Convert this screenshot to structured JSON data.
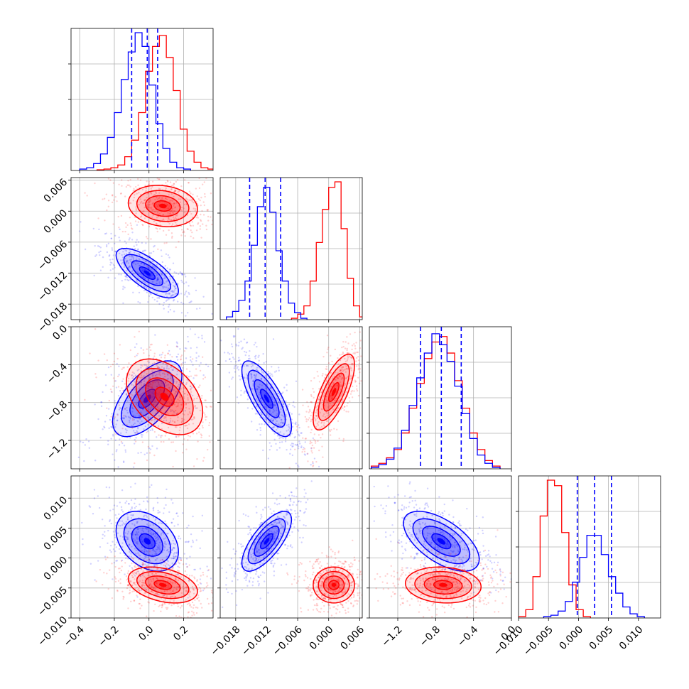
{
  "colors": {
    "series_a": "#ff0000",
    "series_b": "#0000ff",
    "grid": "#b0b0b0"
  },
  "chart_data": {
    "type": "corner",
    "grid": true,
    "series": [
      {
        "name": "",
        "color": "#ff0000",
        "params": {
          "p0": 0.07,
          "p1": 0.001,
          "p2": -0.72,
          "p3": -0.0045
        }
      },
      {
        "name": "",
        "color": "#0000ff",
        "params": {
          "p0": -0.01,
          "p1": -0.012,
          "p2": -0.74,
          "p3": 0.0028
        }
      }
    ],
    "quantiles_blue": {
      "p0": [
        -0.1,
        -0.01,
        0.05
      ],
      "p1": [
        -0.0153,
        -0.0123,
        -0.0093
      ],
      "p2": [
        -0.96,
        -0.74,
        -0.53
      ],
      "p3": [
        -0.0002,
        0.0027,
        0.0055
      ]
    },
    "axes": {
      "p0": {
        "range": [
          -0.45,
          0.37
        ],
        "ticks": [
          -0.4,
          -0.2,
          0.0,
          0.2
        ],
        "tick_labels": [
          "−0.4",
          "−0.2",
          "0.0",
          "0.2"
        ]
      },
      "p1": {
        "range": [
          -0.021,
          0.0065
        ],
        "ticks": [
          -0.018,
          -0.012,
          -0.006,
          0.0,
          0.006
        ],
        "tick_labels": [
          "−0.018",
          "−0.012",
          "−0.006",
          "0.000",
          "0.006"
        ]
      },
      "p2": {
        "range": [
          -1.5,
          0.0
        ],
        "ticks": [
          -1.2,
          -0.8,
          -0.4,
          0.0
        ],
        "tick_labels": [
          "−1.2",
          "−0.8",
          "−0.4",
          "0.0"
        ]
      },
      "p3": {
        "range": [
          -0.01,
          0.0137
        ],
        "ticks": [
          -0.01,
          -0.005,
          0.0,
          0.005,
          0.01
        ],
        "tick_labels": [
          "−0.010",
          "−0.005",
          "0.000",
          "0.005",
          "0.010"
        ]
      }
    },
    "histograms": {
      "p0": {
        "red": [
          [
            -0.28,
            0.005
          ],
          [
            -0.24,
            0.01
          ],
          [
            -0.2,
            0.02
          ],
          [
            -0.16,
            0.04
          ],
          [
            -0.12,
            0.1
          ],
          [
            -0.08,
            0.22
          ],
          [
            -0.04,
            0.42
          ],
          [
            0.0,
            0.72
          ],
          [
            0.04,
            0.9
          ],
          [
            0.08,
            0.98
          ],
          [
            0.12,
            0.82
          ],
          [
            0.16,
            0.58
          ],
          [
            0.2,
            0.3
          ],
          [
            0.24,
            0.14
          ],
          [
            0.28,
            0.06
          ],
          [
            0.32,
            0.02
          ],
          [
            0.36,
            0.01
          ]
        ],
        "blue": [
          [
            -0.38,
            0.01
          ],
          [
            -0.34,
            0.02
          ],
          [
            -0.3,
            0.05
          ],
          [
            -0.26,
            0.12
          ],
          [
            -0.22,
            0.24
          ],
          [
            -0.18,
            0.42
          ],
          [
            -0.14,
            0.66
          ],
          [
            -0.1,
            0.86
          ],
          [
            -0.06,
            1.0
          ],
          [
            -0.02,
            0.9
          ],
          [
            0.02,
            0.62
          ],
          [
            0.06,
            0.34
          ],
          [
            0.1,
            0.16
          ],
          [
            0.14,
            0.06
          ],
          [
            0.18,
            0.02
          ],
          [
            0.22,
            0.01
          ]
        ]
      },
      "p1": {
        "red": [
          [
            -0.0066,
            0.01
          ],
          [
            -0.0054,
            0.04
          ],
          [
            -0.0042,
            0.1
          ],
          [
            -0.003,
            0.28
          ],
          [
            -0.0018,
            0.56
          ],
          [
            -0.0006,
            0.8
          ],
          [
            0.0006,
            0.96
          ],
          [
            0.0018,
            1.0
          ],
          [
            0.003,
            0.66
          ],
          [
            0.0042,
            0.3
          ],
          [
            0.0054,
            0.1
          ],
          [
            0.0066,
            0.02
          ]
        ],
        "blue": [
          [
            -0.0192,
            0.02
          ],
          [
            -0.018,
            0.06
          ],
          [
            -0.0168,
            0.14
          ],
          [
            -0.0156,
            0.28
          ],
          [
            -0.0144,
            0.54
          ],
          [
            -0.0132,
            0.82
          ],
          [
            -0.012,
            0.96
          ],
          [
            -0.0108,
            0.78
          ],
          [
            -0.0096,
            0.5
          ],
          [
            -0.0084,
            0.28
          ],
          [
            -0.0072,
            0.12
          ],
          [
            -0.006,
            0.05
          ],
          [
            -0.0048,
            0.01
          ]
        ]
      },
      "p2": {
        "red": [
          [
            -1.44,
            0.02
          ],
          [
            -1.36,
            0.04
          ],
          [
            -1.28,
            0.08
          ],
          [
            -1.2,
            0.14
          ],
          [
            -1.12,
            0.26
          ],
          [
            -1.04,
            0.44
          ],
          [
            -0.96,
            0.62
          ],
          [
            -0.88,
            0.8
          ],
          [
            -0.8,
            0.92
          ],
          [
            -0.72,
            0.96
          ],
          [
            -0.64,
            0.84
          ],
          [
            -0.56,
            0.64
          ],
          [
            -0.48,
            0.44
          ],
          [
            -0.4,
            0.26
          ],
          [
            -0.32,
            0.14
          ],
          [
            -0.24,
            0.06
          ],
          [
            -0.16,
            0.02
          ]
        ],
        "blue": [
          [
            -1.44,
            0.01
          ],
          [
            -1.36,
            0.03
          ],
          [
            -1.28,
            0.07
          ],
          [
            -1.2,
            0.15
          ],
          [
            -1.12,
            0.28
          ],
          [
            -1.04,
            0.46
          ],
          [
            -0.96,
            0.66
          ],
          [
            -0.88,
            0.84
          ],
          [
            -0.8,
            0.98
          ],
          [
            -0.72,
            0.9
          ],
          [
            -0.64,
            0.78
          ],
          [
            -0.56,
            0.6
          ],
          [
            -0.48,
            0.4
          ],
          [
            -0.4,
            0.22
          ],
          [
            -0.32,
            0.1
          ],
          [
            -0.24,
            0.04
          ],
          [
            -0.16,
            0.01
          ]
        ]
      },
      "p3": {
        "red": [
          [
            -0.0094,
            0.01
          ],
          [
            -0.0082,
            0.06
          ],
          [
            -0.007,
            0.3
          ],
          [
            -0.0058,
            0.74
          ],
          [
            -0.0046,
            1.0
          ],
          [
            -0.0034,
            0.96
          ],
          [
            -0.0022,
            0.62
          ],
          [
            -0.001,
            0.24
          ],
          [
            0.0002,
            0.06
          ],
          [
            0.0014,
            0.01
          ]
        ],
        "blue": [
          [
            -0.0052,
            0.01
          ],
          [
            -0.004,
            0.02
          ],
          [
            -0.0028,
            0.05
          ],
          [
            -0.0016,
            0.12
          ],
          [
            -0.0004,
            0.26
          ],
          [
            0.0008,
            0.44
          ],
          [
            0.002,
            0.6
          ],
          [
            0.0032,
            0.6
          ],
          [
            0.0044,
            0.46
          ],
          [
            0.0056,
            0.3
          ],
          [
            0.0068,
            0.18
          ],
          [
            0.008,
            0.08
          ],
          [
            0.0092,
            0.03
          ],
          [
            0.0104,
            0.01
          ]
        ]
      }
    },
    "pairs": [
      {
        "x": "p0",
        "y": "p1",
        "red": {
          "mean": [
            0.08,
            0.001
          ],
          "sd": [
            0.1,
            0.002
          ],
          "rho": -0.15
        },
        "blue": {
          "mean": [
            -0.01,
            -0.012
          ],
          "sd": [
            0.09,
            0.0024
          ],
          "rho": -0.72
        }
      },
      {
        "x": "p0",
        "y": "p2",
        "red": {
          "mean": [
            0.09,
            -0.74
          ],
          "sd": [
            0.11,
            0.2
          ],
          "rho": -0.4
        },
        "blue": {
          "mean": [
            -0.01,
            -0.76
          ],
          "sd": [
            0.1,
            0.2
          ],
          "rho": 0.6
        }
      },
      {
        "x": "p1",
        "y": "p2",
        "red": {
          "mean": [
            0.001,
            -0.69
          ],
          "sd": [
            0.002,
            0.2
          ],
          "rho": 0.72
        },
        "blue": {
          "mean": [
            -0.012,
            -0.76
          ],
          "sd": [
            0.0024,
            0.2
          ],
          "rho": -0.75
        }
      },
      {
        "x": "p0",
        "y": "p3",
        "red": {
          "mean": [
            0.08,
            -0.0045
          ],
          "sd": [
            0.1,
            0.0015
          ],
          "rho": -0.35
        },
        "blue": {
          "mean": [
            -0.01,
            0.0028
          ],
          "sd": [
            0.09,
            0.0025
          ],
          "rho": -0.35
        }
      },
      {
        "x": "p1",
        "y": "p3",
        "red": {
          "mean": [
            0.001,
            -0.0045
          ],
          "sd": [
            0.002,
            0.0015
          ],
          "rho": 0.0
        },
        "blue": {
          "mean": [
            -0.012,
            0.0028
          ],
          "sd": [
            0.0024,
            0.0025
          ],
          "rho": 0.72
        }
      },
      {
        "x": "p2",
        "y": "p3",
        "red": {
          "mean": [
            -0.72,
            -0.0045
          ],
          "sd": [
            0.2,
            0.0015
          ],
          "rho": -0.1
        },
        "blue": {
          "mean": [
            -0.74,
            0.0028
          ],
          "sd": [
            0.2,
            0.0025
          ],
          "rho": -0.6
        }
      }
    ]
  }
}
